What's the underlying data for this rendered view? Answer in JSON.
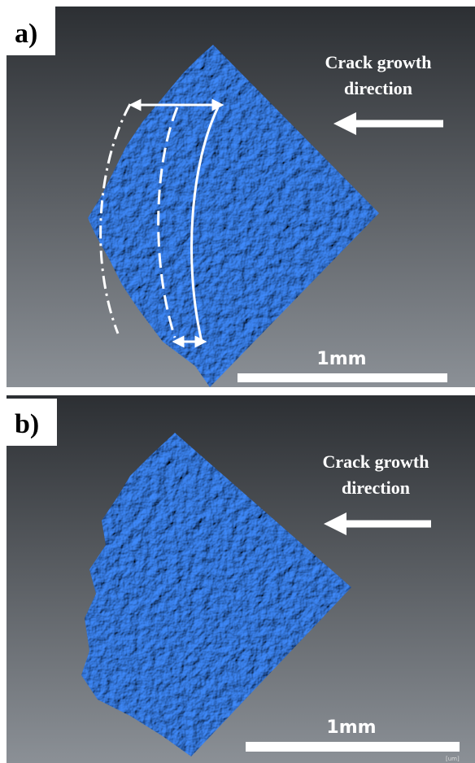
{
  "panels": [
    {
      "label": "a)",
      "annotation": {
        "line1": "Crack growth",
        "line2": "direction"
      },
      "scale_bar": "1mm"
    },
    {
      "label": "b)",
      "annotation": {
        "line1": "Crack growth",
        "line2": "direction"
      },
      "scale_bar": "1mm",
      "unit_note": "[um]"
    }
  ]
}
